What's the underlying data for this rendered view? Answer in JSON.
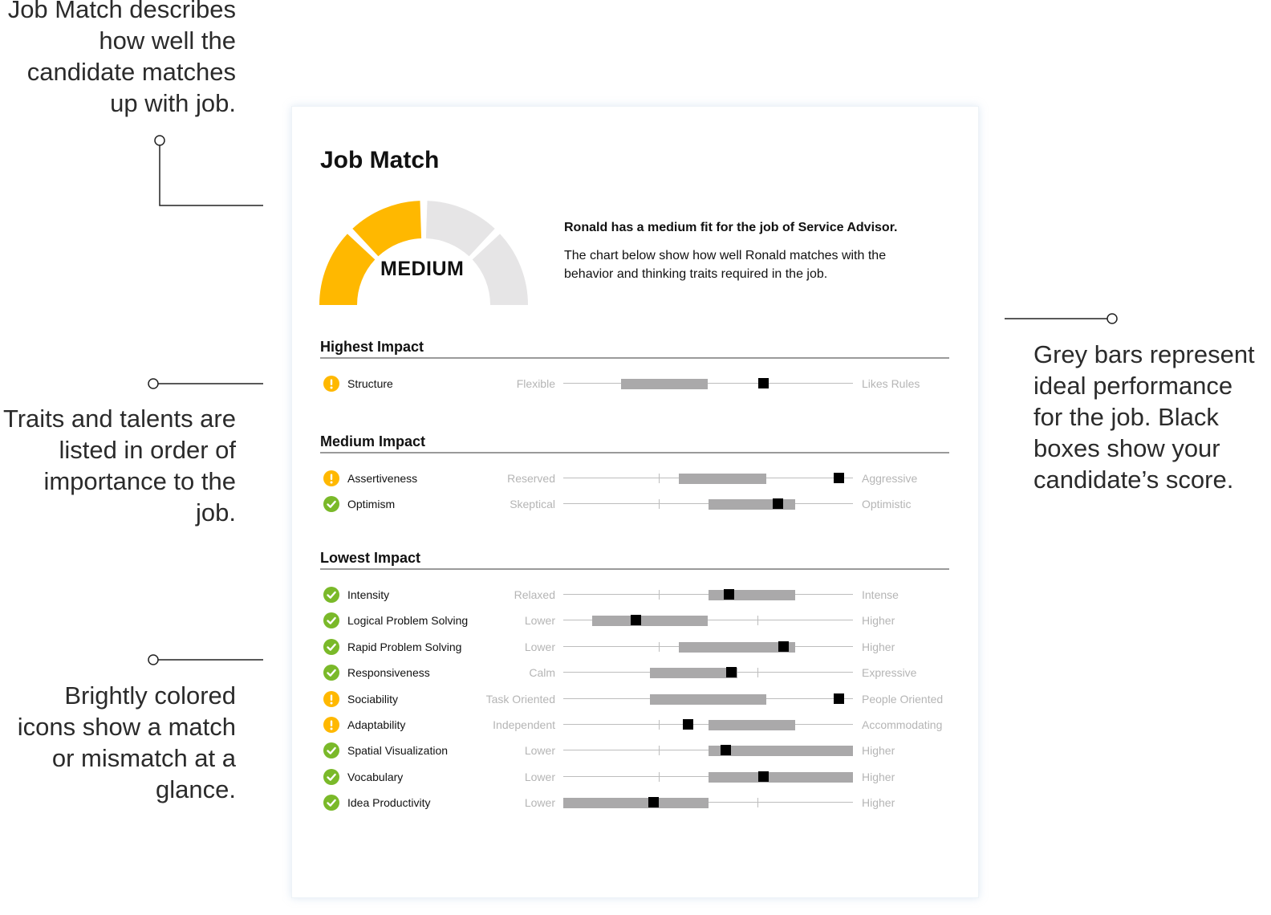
{
  "annotations": {
    "job_match": "Job Match describes\nhow well the\ncandidate matches\nup with job.",
    "traits_order": "Traits and talents are\nlisted in order of\nimportance to the\njob.",
    "icons": "Brightly colored\nicons show a match\nor mismatch at a\nglance.",
    "bars": "Grey bars represent\nideal performance\nfor the job. Black\nboxes show your\ncandidate’s score."
  },
  "report": {
    "title": "Job Match",
    "gauge": {
      "label": "MEDIUM",
      "segments_filled": 2,
      "segments_total": 4,
      "fill_color": "#FFB800",
      "empty_color": "#E6E5E6"
    },
    "summary_fit": "Ronald has a medium fit for the job of Service Advisor.",
    "summary_description": "The chart below show how well Ronald matches with the behavior and thinking traits required in the job."
  },
  "scale": {
    "range": [
      0,
      100
    ],
    "ideal_bar_color": "#AAA9AA",
    "score_color": "#000000",
    "match_icon": "check-circle-icon",
    "match_color": "#7AB929",
    "mismatch_icon": "exclamation-circle-icon",
    "mismatch_color": "#FFB800"
  },
  "sections": [
    {
      "title": "Highest Impact",
      "traits": [
        {
          "name": "Structure",
          "status": "mismatch",
          "low": "Flexible",
          "high": "Likes Rules",
          "ideal": [
            20,
            50
          ],
          "score": 69,
          "ticks": []
        }
      ]
    },
    {
      "title": "Medium Impact",
      "traits": [
        {
          "name": "Assertiveness",
          "status": "mismatch",
          "low": "Reserved",
          "high": "Aggressive",
          "ideal": [
            40,
            70
          ],
          "score": 95,
          "ticks": [
            33
          ]
        },
        {
          "name": "Optimism",
          "status": "match",
          "low": "Skeptical",
          "high": "Optimistic",
          "ideal": [
            50,
            80
          ],
          "score": 74,
          "ticks": [
            33
          ]
        }
      ]
    },
    {
      "title": "Lowest Impact",
      "traits": [
        {
          "name": "Intensity",
          "status": "match",
          "low": "Relaxed",
          "high": "Intense",
          "ideal": [
            50,
            80
          ],
          "score": 57,
          "ticks": [
            33
          ]
        },
        {
          "name": "Logical Problem Solving",
          "status": "match",
          "low": "Lower",
          "high": "Higher",
          "ideal": [
            10,
            50
          ],
          "score": 25,
          "ticks": [
            67
          ]
        },
        {
          "name": "Rapid Problem Solving",
          "status": "match",
          "low": "Lower",
          "high": "Higher",
          "ideal": [
            40,
            80
          ],
          "score": 76,
          "ticks": [
            33
          ]
        },
        {
          "name": "Responsiveness",
          "status": "match",
          "low": "Calm",
          "high": "Expressive",
          "ideal": [
            30,
            60
          ],
          "score": 58,
          "ticks": [
            67
          ]
        },
        {
          "name": "Sociability",
          "status": "mismatch",
          "low": "Task Oriented",
          "high": "People Oriented",
          "ideal": [
            30,
            70
          ],
          "score": 95,
          "ticks": []
        },
        {
          "name": "Adaptability",
          "status": "mismatch",
          "low": "Independent",
          "high": "Accommodating",
          "ideal": [
            50,
            80
          ],
          "score": 43,
          "ticks": [
            33
          ]
        },
        {
          "name": "Spatial Visualization",
          "status": "match",
          "low": "Lower",
          "high": "Higher",
          "ideal": [
            50,
            100
          ],
          "score": 56,
          "ticks": [
            33
          ]
        },
        {
          "name": "Vocabulary",
          "status": "match",
          "low": "Lower",
          "high": "Higher",
          "ideal": [
            50,
            100
          ],
          "score": 69,
          "ticks": [
            33
          ]
        },
        {
          "name": "Idea Productivity",
          "status": "match",
          "low": "Lower",
          "high": "Higher",
          "ideal": [
            0,
            50
          ],
          "score": 31,
          "ticks": [
            67
          ]
        }
      ]
    }
  ]
}
